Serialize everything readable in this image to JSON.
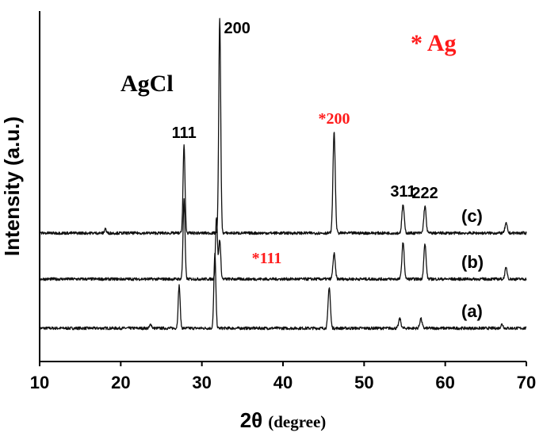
{
  "chart_data": {
    "type": "line",
    "title": "",
    "xlabel_main": "2θ",
    "xlabel_unit": "(degree)",
    "ylabel": "Intensity (a.u.)",
    "xlim": [
      10,
      70
    ],
    "x_ticks": [
      10,
      20,
      30,
      40,
      50,
      60,
      70
    ],
    "grid": false,
    "phase_label": "AgCl",
    "legend_marker": "* Ag",
    "series": [
      {
        "name": "(a)",
        "baseline": 0.0,
        "peaks": [
          {
            "x": 23.7,
            "h": 0.25,
            "w": 0.12
          },
          {
            "x": 27.2,
            "h": 2.7,
            "w": 0.12
          },
          {
            "x": 31.6,
            "h": 4.7,
            "w": 0.12
          },
          {
            "x": 45.7,
            "h": 2.6,
            "w": 0.14
          },
          {
            "x": 54.4,
            "h": 0.6,
            "w": 0.14
          },
          {
            "x": 57.0,
            "h": 0.6,
            "w": 0.14
          },
          {
            "x": 67.0,
            "h": 0.25,
            "w": 0.14
          }
        ]
      },
      {
        "name": "(b)",
        "baseline": 3.1,
        "peaks": [
          {
            "x": 27.8,
            "h": 5.0,
            "w": 0.12
          },
          {
            "x": 31.8,
            "h": 3.9,
            "w": 0.12
          },
          {
            "x": 32.2,
            "h": 2.5,
            "w": 0.12
          },
          {
            "x": 46.3,
            "h": 1.6,
            "w": 0.14
          },
          {
            "x": 54.8,
            "h": 2.3,
            "w": 0.14
          },
          {
            "x": 57.5,
            "h": 2.2,
            "w": 0.14
          },
          {
            "x": 67.5,
            "h": 0.7,
            "w": 0.14
          }
        ]
      },
      {
        "name": "(c)",
        "baseline": 6.0,
        "peaks": [
          {
            "x": 18.1,
            "h": 0.3,
            "w": 0.1
          },
          {
            "x": 27.8,
            "h": 5.5,
            "w": 0.12
          },
          {
            "x": 32.2,
            "h": 13.5,
            "w": 0.12
          },
          {
            "x": 46.3,
            "h": 6.4,
            "w": 0.14
          },
          {
            "x": 54.8,
            "h": 1.8,
            "w": 0.14
          },
          {
            "x": 57.5,
            "h": 1.7,
            "w": 0.14
          },
          {
            "x": 67.5,
            "h": 0.6,
            "w": 0.14
          }
        ]
      }
    ],
    "peak_labels": [
      {
        "text": "111",
        "x": 27.8,
        "color": "black"
      },
      {
        "text": "200",
        "x": 32.2,
        "color": "black"
      },
      {
        "text": "*200",
        "x": 46.3,
        "color": "red"
      },
      {
        "text": "311",
        "x": 54.8,
        "color": "black"
      },
      {
        "text": "222",
        "x": 57.5,
        "color": "black"
      },
      {
        "text": "*111",
        "x": 38.0,
        "color": "red"
      }
    ]
  }
}
